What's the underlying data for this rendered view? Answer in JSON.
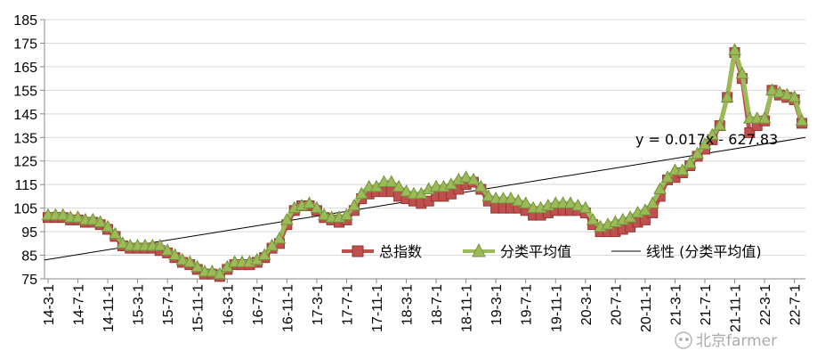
{
  "colors": {
    "index": "#c0504d",
    "index_dark": "#943634",
    "category": "#9bbb59",
    "category_dark": "#76923c",
    "trend": "#000000",
    "grid": "#d9d9d9"
  },
  "legend": {
    "items": [
      "总指数",
      "分类平均值",
      "线性 (分类平均值)"
    ],
    "placement": "bottom-right-inside"
  },
  "trendline_label": "y = 0.017x - 627.83",
  "watermark": "北京farmer",
  "chart_data": {
    "type": "line",
    "title": "",
    "xlabel": "",
    "ylabel": "",
    "ylim": [
      75,
      185
    ],
    "yticks": [
      75,
      85,
      95,
      105,
      115,
      125,
      135,
      145,
      155,
      165,
      175,
      185
    ],
    "grid": "horizontal",
    "xtick_labels": [
      "14-3-1",
      "14-7-1",
      "14-11-1",
      "15-3-1",
      "15-7-1",
      "15-11-1",
      "16-3-1",
      "16-7-1",
      "16-11-1",
      "17-3-1",
      "17-7-1",
      "17-11-1",
      "18-3-1",
      "18-7-1",
      "18-11-1",
      "19-3-1",
      "19-7-1",
      "19-11-1",
      "20-3-1",
      "20-7-1",
      "20-11-1",
      "21-3-1",
      "21-7-1",
      "21-11-1",
      "22-3-1",
      "22-7-1"
    ],
    "x": [
      "14-3",
      "14-4",
      "14-5",
      "14-6",
      "14-7",
      "14-8",
      "14-9",
      "14-10",
      "14-11",
      "14-12",
      "15-1",
      "15-2",
      "15-3",
      "15-4",
      "15-5",
      "15-6",
      "15-7",
      "15-8",
      "15-9",
      "15-10",
      "15-11",
      "15-12",
      "16-1",
      "16-2",
      "16-3",
      "16-4",
      "16-5",
      "16-6",
      "16-7",
      "16-8",
      "16-9",
      "16-10",
      "16-11",
      "16-12",
      "17-1",
      "17-2",
      "17-3",
      "17-4",
      "17-5",
      "17-6",
      "17-7",
      "17-8",
      "17-9",
      "17-10",
      "17-11",
      "17-12",
      "18-1",
      "18-2",
      "18-3",
      "18-4",
      "18-5",
      "18-6",
      "18-7",
      "18-8",
      "18-9",
      "18-10",
      "18-11",
      "18-12",
      "19-1",
      "19-2",
      "19-3",
      "19-4",
      "19-5",
      "19-6",
      "19-7",
      "19-8",
      "19-9",
      "19-10",
      "19-11",
      "19-12",
      "20-1",
      "20-2",
      "20-3",
      "20-4",
      "20-5",
      "20-6",
      "20-7",
      "20-8",
      "20-9",
      "20-10",
      "20-11",
      "20-12",
      "21-1",
      "21-2",
      "21-3",
      "21-4",
      "21-5",
      "21-6",
      "21-7",
      "21-8",
      "21-9",
      "21-10",
      "21-11",
      "21-12",
      "22-1",
      "22-2",
      "22-3",
      "22-4",
      "22-5",
      "22-6",
      "22-7",
      "22-8"
    ],
    "series": [
      {
        "name": "总指数",
        "marker": "square",
        "values": [
          101,
          101,
          101,
          100,
          100,
          99,
          99,
          98,
          96,
          93,
          89,
          88,
          88,
          88,
          88,
          87,
          86,
          84,
          82,
          81,
          79,
          77,
          77,
          76,
          79,
          81,
          81,
          81,
          82,
          84,
          88,
          90,
          98,
          104,
          106,
          106,
          104,
          101,
          100,
          99,
          100,
          104,
          109,
          111,
          112,
          112,
          112,
          110,
          109,
          108,
          107,
          108,
          110,
          110,
          111,
          113,
          115,
          116,
          113,
          108,
          105,
          105,
          105,
          105,
          104,
          102,
          102,
          103,
          104,
          104,
          104,
          104,
          103,
          98,
          95,
          95,
          95,
          96,
          97,
          99,
          100,
          103,
          110,
          117,
          118,
          120,
          123,
          127,
          130,
          134,
          140,
          152,
          171,
          160,
          137,
          140,
          142,
          155,
          153,
          152,
          151,
          141
        ]
      },
      {
        "name": "分类平均值",
        "marker": "triangle",
        "values": [
          102,
          102,
          102,
          101,
          101,
          100,
          100,
          99,
          97,
          94,
          90,
          89,
          89,
          89,
          89,
          89,
          87,
          85,
          83,
          82,
          80,
          78,
          78,
          77,
          80,
          82,
          82,
          82,
          83,
          85,
          89,
          92,
          100,
          105,
          106,
          107,
          105,
          102,
          101,
          101,
          102,
          106,
          111,
          114,
          114,
          116,
          116,
          114,
          112,
          111,
          111,
          113,
          114,
          114,
          115,
          117,
          118,
          117,
          114,
          110,
          109,
          109,
          109,
          108,
          107,
          105,
          105,
          106,
          107,
          107,
          107,
          106,
          105,
          100,
          97,
          98,
          99,
          100,
          101,
          103,
          104,
          107,
          113,
          118,
          121,
          121,
          124,
          128,
          132,
          136,
          140,
          152,
          172,
          162,
          143,
          143,
          143,
          155,
          154,
          153,
          152,
          142
        ]
      }
    ],
    "trendline": {
      "name": "线性 (分类平均值)",
      "start": 83,
      "end": 135
    }
  }
}
